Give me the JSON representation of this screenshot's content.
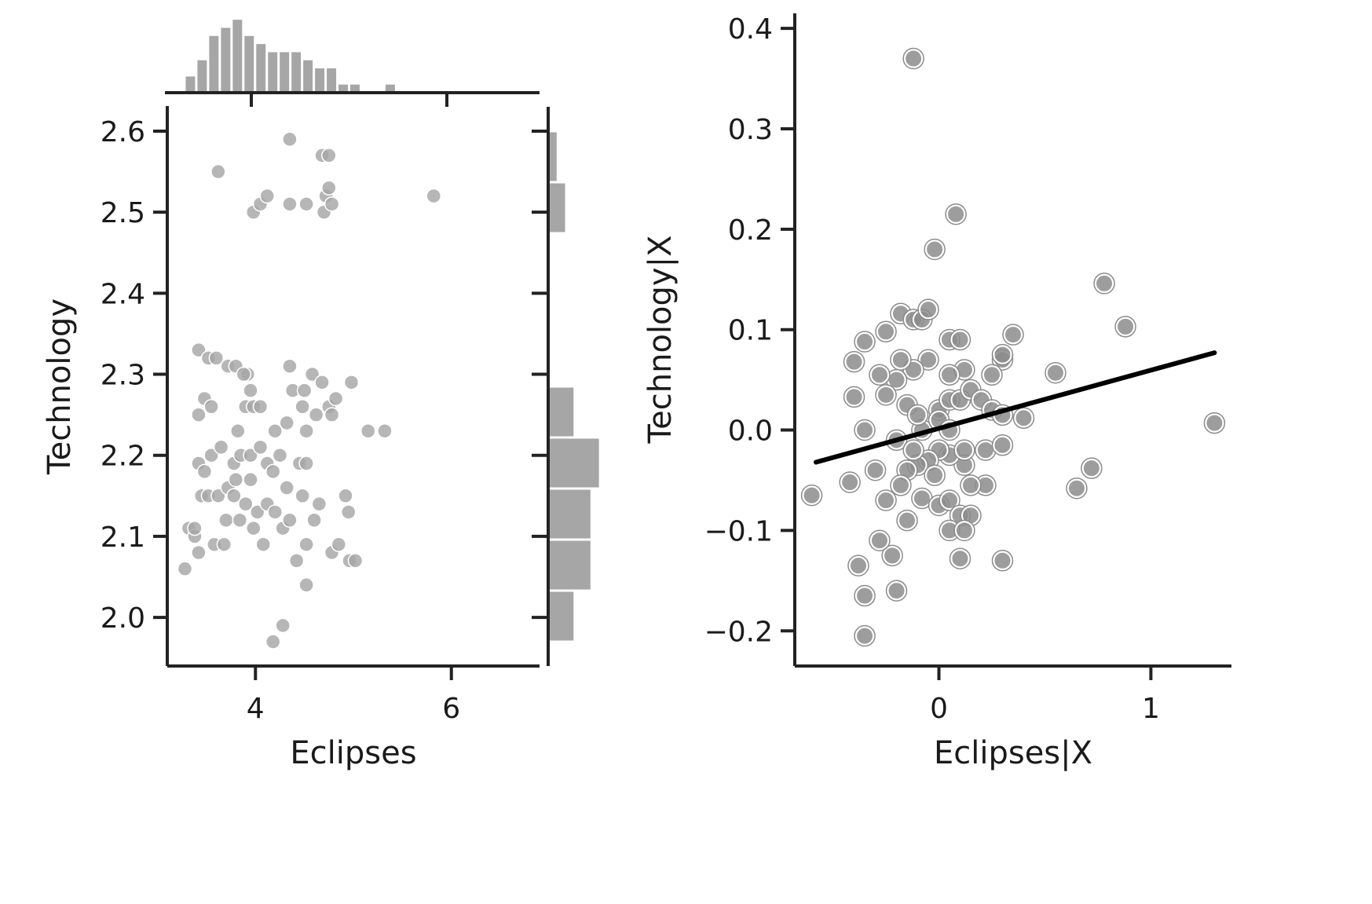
{
  "figure": {
    "marker_color": "#a6a6a6",
    "partial_marker_color": "#8c8c8c",
    "line_color": "#000000",
    "axis_color": "#222222"
  },
  "chart_data": [
    {
      "type": "scatter",
      "title": "",
      "xlabel": "Eclipses",
      "ylabel": "Technology",
      "xlim": [
        3.1,
        6.9
      ],
      "ylim": [
        1.94,
        2.63
      ],
      "xticks": [
        4,
        6
      ],
      "xtick_labels": [
        "4",
        "6"
      ],
      "yticks": [
        2.0,
        2.1,
        2.2,
        2.3,
        2.4,
        2.5,
        2.6
      ],
      "ytick_labels": [
        "2.0",
        "2.1",
        "2.2",
        "2.3",
        "2.4",
        "2.5",
        "2.6"
      ],
      "grid": false,
      "points": [
        [
          3.28,
          2.06
        ],
        [
          3.32,
          2.11
        ],
        [
          3.38,
          2.1
        ],
        [
          3.42,
          2.08
        ],
        [
          3.38,
          2.11
        ],
        [
          3.45,
          2.15
        ],
        [
          3.52,
          2.15
        ],
        [
          3.58,
          2.09
        ],
        [
          3.62,
          2.15
        ],
        [
          3.68,
          2.09
        ],
        [
          3.7,
          2.12
        ],
        [
          3.72,
          2.16
        ],
        [
          3.78,
          2.15
        ],
        [
          3.8,
          2.17
        ],
        [
          3.84,
          2.12
        ],
        [
          3.9,
          2.14
        ],
        [
          3.95,
          2.17
        ],
        [
          3.98,
          2.11
        ],
        [
          4.02,
          2.13
        ],
        [
          4.08,
          2.09
        ],
        [
          4.12,
          2.14
        ],
        [
          4.2,
          2.13
        ],
        [
          4.28,
          2.11
        ],
        [
          4.35,
          2.12
        ],
        [
          4.42,
          2.07
        ],
        [
          4.48,
          2.15
        ],
        [
          4.52,
          2.09
        ],
        [
          4.6,
          2.12
        ],
        [
          4.65,
          2.14
        ],
        [
          4.78,
          2.08
        ],
        [
          4.85,
          2.09
        ],
        [
          4.92,
          2.15
        ],
        [
          4.95,
          2.13
        ],
        [
          4.96,
          2.07
        ],
        [
          5.02,
          2.07
        ],
        [
          4.52,
          2.04
        ],
        [
          4.28,
          1.99
        ],
        [
          4.18,
          1.97
        ],
        [
          3.42,
          2.19
        ],
        [
          3.48,
          2.18
        ],
        [
          3.55,
          2.2
        ],
        [
          3.65,
          2.21
        ],
        [
          3.78,
          2.19
        ],
        [
          3.85,
          2.2
        ],
        [
          3.95,
          2.2
        ],
        [
          4.05,
          2.21
        ],
        [
          4.12,
          2.19
        ],
        [
          4.18,
          2.18
        ],
        [
          4.25,
          2.2
        ],
        [
          4.32,
          2.16
        ],
        [
          4.45,
          2.19
        ],
        [
          4.52,
          2.19
        ],
        [
          3.42,
          2.25
        ],
        [
          3.48,
          2.27
        ],
        [
          3.55,
          2.26
        ],
        [
          3.82,
          2.23
        ],
        [
          3.9,
          2.26
        ],
        [
          3.98,
          2.26
        ],
        [
          4.05,
          2.26
        ],
        [
          4.2,
          2.23
        ],
        [
          4.32,
          2.24
        ],
        [
          4.52,
          2.23
        ],
        [
          4.62,
          2.25
        ],
        [
          4.75,
          2.26
        ],
        [
          4.78,
          2.25
        ],
        [
          4.82,
          2.27
        ],
        [
          4.48,
          2.26
        ],
        [
          4.38,
          2.28
        ],
        [
          4.5,
          2.28
        ],
        [
          4.58,
          2.3
        ],
        [
          4.68,
          2.29
        ],
        [
          4.98,
          2.29
        ],
        [
          3.92,
          2.3
        ],
        [
          3.42,
          2.33
        ],
        [
          3.52,
          2.32
        ],
        [
          3.6,
          2.32
        ],
        [
          3.72,
          2.31
        ],
        [
          3.8,
          2.31
        ],
        [
          3.88,
          2.3
        ],
        [
          3.95,
          2.28
        ],
        [
          4.35,
          2.31
        ],
        [
          5.15,
          2.23
        ],
        [
          5.32,
          2.23
        ],
        [
          3.62,
          2.55
        ],
        [
          3.98,
          2.5
        ],
        [
          4.05,
          2.51
        ],
        [
          4.12,
          2.52
        ],
        [
          4.35,
          2.51
        ],
        [
          4.52,
          2.51
        ],
        [
          4.7,
          2.5
        ],
        [
          4.72,
          2.52
        ],
        [
          4.78,
          2.51
        ],
        [
          4.75,
          2.53
        ],
        [
          4.35,
          2.59
        ],
        [
          4.68,
          2.57
        ],
        [
          4.75,
          2.57
        ],
        [
          5.82,
          2.52
        ]
      ]
    },
    {
      "type": "bar",
      "title": "",
      "role": "marginal histogram of Eclipses (top)",
      "bin_edges": [
        3.28,
        3.4,
        3.52,
        3.64,
        3.76,
        3.88,
        4.0,
        4.12,
        4.24,
        4.36,
        4.48,
        4.6,
        4.72,
        4.84,
        4.96,
        5.08,
        5.2,
        5.32,
        5.44,
        5.56,
        5.68,
        5.8
      ],
      "values": [
        2,
        4,
        7,
        8,
        9,
        7,
        6,
        5,
        5,
        5,
        4,
        3,
        3,
        1,
        1,
        0,
        0,
        1,
        0,
        0,
        0
      ],
      "ylim": [
        0,
        9.5
      ]
    },
    {
      "type": "bar",
      "title": "",
      "role": "marginal histogram of Technology (right)",
      "bin_edges": [
        1.97,
        2.033,
        2.096,
        2.159,
        2.222,
        2.285,
        2.348,
        2.411,
        2.474,
        2.537,
        2.6
      ],
      "values": [
        3,
        5,
        5,
        6,
        3,
        0,
        0,
        0,
        2,
        1
      ],
      "xlim": [
        0,
        6.5
      ]
    },
    {
      "type": "scatter",
      "title": "",
      "xlabel": "Eclipses|X",
      "ylabel": "Technology|X",
      "xlim": [
        -0.68,
        1.38
      ],
      "ylim": [
        -0.235,
        0.415
      ],
      "xticks": [
        0,
        1
      ],
      "xtick_labels": [
        "0",
        "1"
      ],
      "yticks": [
        -0.2,
        -0.1,
        0.0,
        0.1,
        0.2,
        0.3,
        0.4
      ],
      "ytick_labels": [
        "−0.2",
        "−0.1",
        "0.0",
        "0.1",
        "0.2",
        "0.3",
        "0.4"
      ],
      "grid": false,
      "points": [
        [
          -0.12,
          0.37
        ],
        [
          0.08,
          0.215
        ],
        [
          -0.02,
          0.18
        ],
        [
          -0.4,
          0.068
        ],
        [
          -0.35,
          0.088
        ],
        [
          -0.25,
          0.098
        ],
        [
          -0.4,
          0.033
        ],
        [
          -0.35,
          0.0
        ],
        [
          -0.2,
          -0.01
        ],
        [
          -0.18,
          0.116
        ],
        [
          -0.12,
          0.11
        ],
        [
          -0.08,
          0.11
        ],
        [
          -0.05,
          0.12
        ],
        [
          0.05,
          0.09
        ],
        [
          0.1,
          0.09
        ],
        [
          0.3,
          0.07
        ],
        [
          0.35,
          0.095
        ],
        [
          0.55,
          0.057
        ],
        [
          0.78,
          0.146
        ],
        [
          0.88,
          0.103
        ],
        [
          1.3,
          0.007
        ],
        [
          -0.6,
          -0.065
        ],
        [
          -0.42,
          -0.052
        ],
        [
          -0.3,
          -0.04
        ],
        [
          -0.25,
          -0.07
        ],
        [
          -0.22,
          -0.125
        ],
        [
          -0.28,
          -0.11
        ],
        [
          -0.38,
          -0.135
        ],
        [
          -0.35,
          -0.165
        ],
        [
          -0.35,
          -0.205
        ],
        [
          -0.2,
          -0.16
        ],
        [
          -0.15,
          -0.09
        ],
        [
          -0.08,
          -0.068
        ],
        [
          0.0,
          -0.075
        ],
        [
          0.05,
          -0.07
        ],
        [
          0.1,
          -0.085
        ],
        [
          0.15,
          -0.085
        ],
        [
          0.05,
          -0.1
        ],
        [
          0.12,
          -0.1
        ],
        [
          0.1,
          -0.128
        ],
        [
          0.3,
          -0.13
        ],
        [
          0.22,
          -0.055
        ],
        [
          0.15,
          -0.055
        ],
        [
          0.12,
          -0.035
        ],
        [
          0.05,
          -0.025
        ],
        [
          0.0,
          -0.02
        ],
        [
          -0.05,
          -0.03
        ],
        [
          -0.1,
          -0.035
        ],
        [
          -0.15,
          -0.04
        ],
        [
          -0.18,
          -0.055
        ],
        [
          -0.12,
          -0.02
        ],
        [
          -0.08,
          0.0
        ],
        [
          0.0,
          0.02
        ],
        [
          0.05,
          0.03
        ],
        [
          0.1,
          0.03
        ],
        [
          0.15,
          0.04
        ],
        [
          0.2,
          0.03
        ],
        [
          0.25,
          0.02
        ],
        [
          0.3,
          0.015
        ],
        [
          0.4,
          0.012
        ],
        [
          0.25,
          0.055
        ],
        [
          0.3,
          0.075
        ],
        [
          0.12,
          0.06
        ],
        [
          0.05,
          0.055
        ],
        [
          -0.05,
          0.07
        ],
        [
          -0.12,
          0.06
        ],
        [
          -0.18,
          0.07
        ],
        [
          -0.2,
          0.05
        ],
        [
          -0.25,
          0.035
        ],
        [
          -0.15,
          0.025
        ],
        [
          -0.1,
          0.015
        ],
        [
          0.0,
          0.01
        ],
        [
          0.05,
          0.0
        ],
        [
          0.12,
          -0.02
        ],
        [
          0.22,
          -0.02
        ],
        [
          0.3,
          -0.015
        ],
        [
          0.65,
          -0.058
        ],
        [
          0.72,
          -0.038
        ],
        [
          -0.28,
          0.055
        ],
        [
          -0.02,
          -0.045
        ]
      ],
      "fit_line": {
        "x": [
          -0.58,
          1.3
        ],
        "y": [
          -0.032,
          0.077
        ]
      }
    }
  ]
}
